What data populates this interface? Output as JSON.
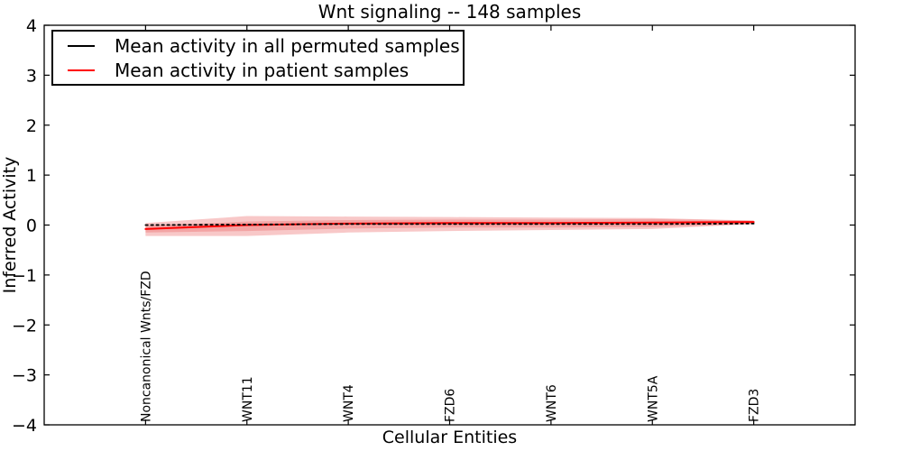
{
  "title": "Wnt signaling -- 148 samples",
  "legend": {
    "items": [
      {
        "label": "Mean activity in all permuted samples",
        "color": "#000000"
      },
      {
        "label": "Mean activity in patient samples",
        "color": "#ff0000"
      }
    ]
  },
  "chart_data": {
    "type": "line",
    "title": "Wnt signaling -- 148 samples",
    "xlabel": "Cellular Entities",
    "ylabel": "Inferred Activity",
    "ylim": [
      -4,
      4
    ],
    "yticks": [
      -4,
      -3,
      -2,
      -1,
      0,
      1,
      2,
      3,
      4
    ],
    "grid": false,
    "legend_position": "upper left",
    "categories": [
      "Noncanonical Wnts/FZD",
      "WNT11",
      "WNT4",
      "FZD6",
      "WNT6",
      "WNT5A",
      "FZD3"
    ],
    "series": [
      {
        "name": "Mean activity in all permuted samples",
        "color": "#000000",
        "style": "dashed",
        "values": [
          0.0,
          0.01,
          0.02,
          0.02,
          0.02,
          0.02,
          0.03
        ]
      },
      {
        "name": "Mean activity in patient samples",
        "color": "#ff0000",
        "style": "solid",
        "values": [
          -0.08,
          0.0,
          0.03,
          0.04,
          0.04,
          0.05,
          0.06
        ]
      }
    ],
    "bands": [
      {
        "name": "std-band-outer",
        "color": "rgba(229,57,57,0.28)",
        "upper": [
          0.04,
          0.18,
          0.17,
          0.16,
          0.15,
          0.14,
          0.09
        ],
        "lower": [
          -0.22,
          -0.22,
          -0.15,
          -0.12,
          -0.1,
          -0.08,
          0.02
        ]
      },
      {
        "name": "std-band-inner",
        "color": "rgba(229,57,57,0.25)",
        "upper": [
          -0.02,
          0.07,
          0.1,
          0.11,
          0.11,
          0.12,
          0.09
        ],
        "lower": [
          -0.15,
          -0.12,
          -0.07,
          -0.05,
          -0.05,
          -0.04,
          0.02
        ]
      }
    ]
  }
}
